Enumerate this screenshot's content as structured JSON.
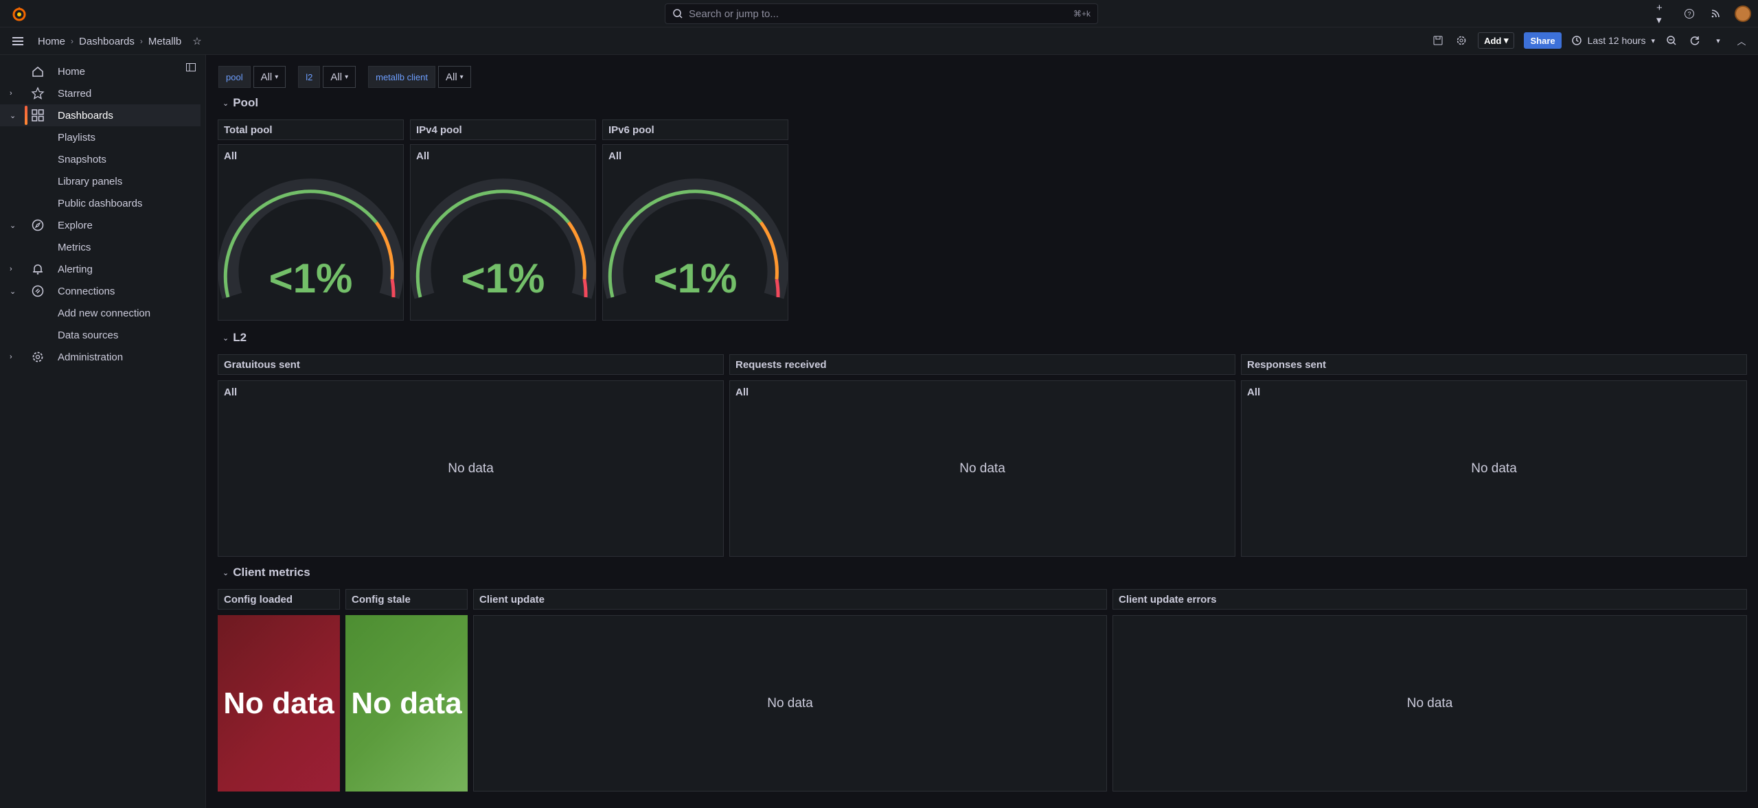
{
  "topbar": {
    "search_placeholder": "Search or jump to...",
    "search_shortcut": "⌘+k"
  },
  "breadcrumb": [
    "Home",
    "Dashboards",
    "Metallb"
  ],
  "toolbar": {
    "add_label": "Add",
    "share_label": "Share",
    "time_range": "Last 12 hours"
  },
  "sidebar": {
    "items": [
      {
        "label": "Home",
        "icon": "home-icon"
      },
      {
        "label": "Starred",
        "icon": "star-icon"
      },
      {
        "label": "Dashboards",
        "icon": "apps-icon"
      },
      {
        "label": "Explore",
        "icon": "compass-icon"
      },
      {
        "label": "Alerting",
        "icon": "bell-icon"
      },
      {
        "label": "Connections",
        "icon": "link-icon"
      },
      {
        "label": "Administration",
        "icon": "cog-icon"
      }
    ],
    "dashboards_sub": [
      "Playlists",
      "Snapshots",
      "Library panels",
      "Public dashboards"
    ],
    "explore_sub": [
      "Metrics"
    ],
    "connections_sub": [
      "Add new connection",
      "Data sources"
    ]
  },
  "variables": [
    {
      "label": "pool",
      "value": "All"
    },
    {
      "label": "l2",
      "value": "All"
    },
    {
      "label": "metallb client",
      "value": "All"
    }
  ],
  "rows": {
    "pool": "Pool",
    "l2": "L2",
    "client": "Client metrics"
  },
  "pool_panels": [
    {
      "title": "Total pool",
      "legend": "All",
      "value": "<1%"
    },
    {
      "title": "IPv4 pool",
      "legend": "All",
      "value": "<1%"
    },
    {
      "title": "IPv6 pool",
      "legend": "All",
      "value": "<1%"
    }
  ],
  "l2_panels": [
    {
      "title": "Gratuitous sent",
      "legend": "All",
      "message": "No data"
    },
    {
      "title": "Requests received",
      "legend": "All",
      "message": "No data"
    },
    {
      "title": "Responses sent",
      "legend": "All",
      "message": "No data"
    }
  ],
  "client_panels": [
    {
      "title": "Config loaded",
      "message": "No data",
      "color": "#8f1e2c"
    },
    {
      "title": "Config stale",
      "message": "No data",
      "color": "#5c9c3d"
    },
    {
      "title": "Client update",
      "message": "No data"
    },
    {
      "title": "Client update errors",
      "message": "No data"
    }
  ],
  "colors": {
    "gauge_green": "#73bf69",
    "gauge_orange": "#ff9830",
    "gauge_red": "#f2495c"
  }
}
